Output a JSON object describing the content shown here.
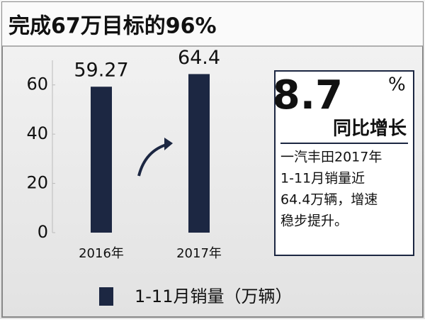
{
  "chart_data": {
    "type": "bar",
    "title": "完成67万目标的96%",
    "categories": [
      "2016年",
      "2017年"
    ],
    "series": [
      {
        "name": "1-11月销量（万辆）",
        "color": "#1c2742",
        "values": [
          59.27,
          64.4
        ]
      }
    ],
    "ylim": [
      0,
      70
    ],
    "yticks": [
      0,
      20,
      40,
      60
    ],
    "legend": "bottom",
    "annotation": {
      "value": "8.7",
      "unit": "%",
      "label": "同比增长",
      "note": [
        "一汽丰田2017年",
        "1-11月销量近",
        "64.4万辆，增速",
        "稳步提升。"
      ]
    }
  }
}
